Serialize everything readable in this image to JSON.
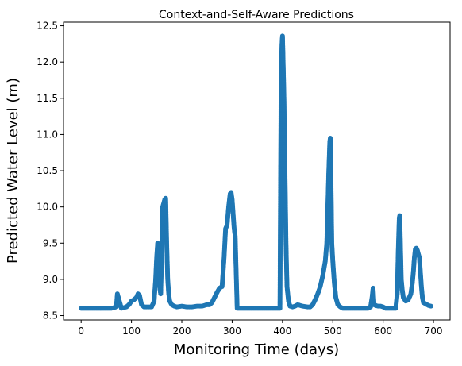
{
  "chart_data": {
    "type": "scatter",
    "title": "Context-and-Self-Aware Predictions",
    "xlabel": "Monitoring Time (days)",
    "ylabel": "Predicted Water Level (m)",
    "xlim": [
      -35,
      733
    ],
    "ylim": [
      8.44,
      12.55
    ],
    "xticks": [
      0,
      100,
      200,
      300,
      400,
      500,
      600,
      700
    ],
    "yticks": [
      8.5,
      9.0,
      9.5,
      10.0,
      10.5,
      11.0,
      11.5,
      12.0,
      12.5
    ],
    "ytick_labels": [
      "8.5",
      "9.0",
      "9.5",
      "10.0",
      "10.5",
      "11.0",
      "11.5",
      "12.0",
      "12.5"
    ],
    "grid": false,
    "legend": false,
    "marker_color": "#1f77b4",
    "series": [
      {
        "points": [
          [
            0,
            8.6
          ],
          [
            10,
            8.6
          ],
          [
            20,
            8.6
          ],
          [
            30,
            8.6
          ],
          [
            40,
            8.6
          ],
          [
            50,
            8.6
          ],
          [
            60,
            8.6
          ],
          [
            70,
            8.62
          ],
          [
            72,
            8.8
          ],
          [
            80,
            8.6
          ],
          [
            90,
            8.62
          ],
          [
            95,
            8.65
          ],
          [
            100,
            8.7
          ],
          [
            105,
            8.72
          ],
          [
            110,
            8.75
          ],
          [
            113,
            8.8
          ],
          [
            116,
            8.78
          ],
          [
            120,
            8.65
          ],
          [
            125,
            8.62
          ],
          [
            130,
            8.62
          ],
          [
            135,
            8.62
          ],
          [
            140,
            8.62
          ],
          [
            145,
            8.7
          ],
          [
            148,
            9.0
          ],
          [
            150,
            9.3
          ],
          [
            152,
            9.5
          ],
          [
            154,
            9.2
          ],
          [
            156,
            8.9
          ],
          [
            158,
            8.8
          ],
          [
            160,
            9.3
          ],
          [
            162,
            10.0
          ],
          [
            164,
            10.05
          ],
          [
            166,
            10.1
          ],
          [
            168,
            10.12
          ],
          [
            170,
            9.5
          ],
          [
            172,
            9.0
          ],
          [
            174,
            8.8
          ],
          [
            176,
            8.7
          ],
          [
            180,
            8.65
          ],
          [
            185,
            8.63
          ],
          [
            190,
            8.62
          ],
          [
            200,
            8.63
          ],
          [
            210,
            8.62
          ],
          [
            220,
            8.62
          ],
          [
            230,
            8.63
          ],
          [
            240,
            8.63
          ],
          [
            250,
            8.65
          ],
          [
            255,
            8.65
          ],
          [
            260,
            8.68
          ],
          [
            265,
            8.75
          ],
          [
            270,
            8.82
          ],
          [
            275,
            8.88
          ],
          [
            280,
            8.9
          ],
          [
            284,
            9.3
          ],
          [
            287,
            9.7
          ],
          [
            290,
            9.75
          ],
          [
            293,
            10.0
          ],
          [
            296,
            10.18
          ],
          [
            298,
            10.2
          ],
          [
            300,
            10.1
          ],
          [
            302,
            9.9
          ],
          [
            304,
            9.7
          ],
          [
            306,
            9.6
          ],
          [
            310,
            8.6
          ],
          [
            320,
            8.6
          ],
          [
            330,
            8.6
          ],
          [
            340,
            8.6
          ],
          [
            350,
            8.6
          ],
          [
            360,
            8.6
          ],
          [
            370,
            8.6
          ],
          [
            380,
            8.6
          ],
          [
            390,
            8.6
          ],
          [
            395,
            8.6
          ],
          [
            397,
            11.4
          ],
          [
            398,
            12.0
          ],
          [
            399,
            12.25
          ],
          [
            400,
            12.36
          ],
          [
            401,
            12.1
          ],
          [
            403,
            11.5
          ],
          [
            405,
            10.5
          ],
          [
            407,
            9.5
          ],
          [
            409,
            8.9
          ],
          [
            412,
            8.7
          ],
          [
            415,
            8.63
          ],
          [
            420,
            8.62
          ],
          [
            425,
            8.63
          ],
          [
            430,
            8.65
          ],
          [
            435,
            8.64
          ],
          [
            440,
            8.63
          ],
          [
            450,
            8.62
          ],
          [
            455,
            8.62
          ],
          [
            460,
            8.65
          ],
          [
            465,
            8.72
          ],
          [
            470,
            8.8
          ],
          [
            475,
            8.9
          ],
          [
            480,
            9.05
          ],
          [
            485,
            9.25
          ],
          [
            488,
            9.5
          ],
          [
            490,
            10.0
          ],
          [
            492,
            10.5
          ],
          [
            494,
            10.9
          ],
          [
            495,
            10.95
          ],
          [
            496,
            10.6
          ],
          [
            498,
            9.5
          ],
          [
            500,
            9.25
          ],
          [
            503,
            8.95
          ],
          [
            506,
            8.75
          ],
          [
            510,
            8.65
          ],
          [
            515,
            8.62
          ],
          [
            520,
            8.6
          ],
          [
            530,
            8.6
          ],
          [
            540,
            8.6
          ],
          [
            550,
            8.6
          ],
          [
            560,
            8.6
          ],
          [
            570,
            8.6
          ],
          [
            575,
            8.62
          ],
          [
            578,
            8.75
          ],
          [
            580,
            8.88
          ],
          [
            582,
            8.65
          ],
          [
            585,
            8.64
          ],
          [
            590,
            8.63
          ],
          [
            595,
            8.63
          ],
          [
            600,
            8.62
          ],
          [
            605,
            8.6
          ],
          [
            610,
            8.6
          ],
          [
            620,
            8.6
          ],
          [
            625,
            8.6
          ],
          [
            628,
            8.8
          ],
          [
            630,
            9.4
          ],
          [
            632,
            9.85
          ],
          [
            633,
            9.88
          ],
          [
            634,
            9.6
          ],
          [
            636,
            9.0
          ],
          [
            638,
            8.85
          ],
          [
            640,
            8.75
          ],
          [
            645,
            8.7
          ],
          [
            650,
            8.72
          ],
          [
            655,
            8.8
          ],
          [
            658,
            8.95
          ],
          [
            660,
            9.1
          ],
          [
            662,
            9.3
          ],
          [
            664,
            9.42
          ],
          [
            666,
            9.43
          ],
          [
            668,
            9.4
          ],
          [
            670,
            9.35
          ],
          [
            672,
            9.3
          ],
          [
            674,
            9.1
          ],
          [
            676,
            8.9
          ],
          [
            678,
            8.75
          ],
          [
            680,
            8.68
          ],
          [
            685,
            8.66
          ],
          [
            690,
            8.64
          ],
          [
            695,
            8.63
          ]
        ]
      }
    ]
  }
}
